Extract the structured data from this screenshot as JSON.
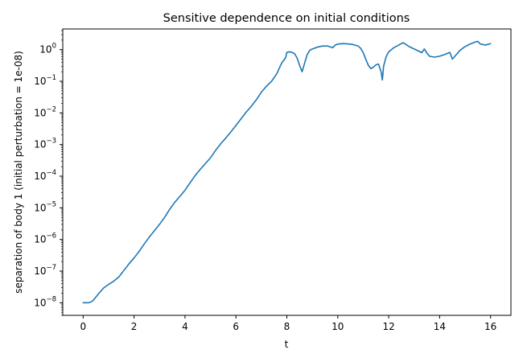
{
  "chart_data": {
    "type": "line",
    "title": "Sensitive dependence on initial conditions",
    "xlabel": "t",
    "ylabel": "separation of body 1 (initial perturbation = 1e-08)",
    "xscale": "linear",
    "yscale": "log",
    "xlim": [
      -0.8,
      16.8
    ],
    "ylim": [
      4e-09,
      4.5
    ],
    "grid": false,
    "color": "#1f77b4",
    "x_ticks": [
      0,
      2,
      4,
      6,
      8,
      10,
      12,
      14,
      16
    ],
    "x_tick_labels": [
      "0",
      "2",
      "4",
      "6",
      "8",
      "10",
      "12",
      "14",
      "16"
    ],
    "y_ticks": [
      {
        "value": 1e-08,
        "base": "10",
        "exp": "−8"
      },
      {
        "value": 1e-07,
        "base": "10",
        "exp": "−7"
      },
      {
        "value": 1e-06,
        "base": "10",
        "exp": "−6"
      },
      {
        "value": 1e-05,
        "base": "10",
        "exp": "−5"
      },
      {
        "value": 0.0001,
        "base": "10",
        "exp": "−4"
      },
      {
        "value": 0.001,
        "base": "10",
        "exp": "−3"
      },
      {
        "value": 0.01,
        "base": "10",
        "exp": "−2"
      },
      {
        "value": 0.1,
        "base": "10",
        "exp": "−1"
      },
      {
        "value": 1,
        "base": "10",
        "exp": "0"
      }
    ],
    "series": [
      {
        "x": [
          0,
          0.1,
          0.2,
          0.3,
          0.4,
          0.6,
          0.8,
          1.0,
          1.2,
          1.4,
          1.6,
          1.8,
          2.0,
          2.2,
          2.4,
          2.6,
          2.8,
          3.0,
          3.2,
          3.4,
          3.6,
          3.8,
          4.0,
          4.2,
          4.4,
          4.6,
          4.8,
          5.0,
          5.2,
          5.4,
          5.6,
          5.8,
          6.0,
          6.2,
          6.4,
          6.6,
          6.8,
          7.0,
          7.2,
          7.4,
          7.6,
          7.8,
          7.95,
          8.0,
          8.1,
          8.2,
          8.3,
          8.4,
          8.5,
          8.6,
          8.7,
          8.8,
          8.9,
          9.0,
          9.2,
          9.4,
          9.6,
          9.8,
          9.9,
          10.0,
          10.2,
          10.4,
          10.6,
          10.8,
          10.9,
          11.0,
          11.1,
          11.2,
          11.3,
          11.4,
          11.5,
          11.6,
          11.7,
          11.75,
          11.8,
          11.9,
          12.0,
          12.2,
          12.4,
          12.55,
          12.6,
          12.8,
          13.0,
          13.2,
          13.3,
          13.4,
          13.5,
          13.6,
          13.8,
          14.0,
          14.2,
          14.4,
          14.5,
          14.6,
          14.8,
          15.0,
          15.2,
          15.4,
          15.5,
          15.6,
          15.8,
          16.0
        ],
        "y": [
          1e-08,
          1e-08,
          1e-08,
          1.05e-08,
          1.2e-08,
          1.9e-08,
          2.9e-08,
          3.8e-08,
          4.8e-08,
          6.5e-08,
          1.05e-07,
          1.7e-07,
          2.6e-07,
          4.2e-07,
          7.2e-07,
          1.2e-06,
          1.9e-06,
          3e-06,
          5e-06,
          9e-06,
          1.5e-05,
          2.3e-05,
          3.6e-05,
          6.2e-05,
          0.000105,
          0.000165,
          0.00025,
          0.00038,
          0.00065,
          0.00105,
          0.0016,
          0.0025,
          0.004,
          0.0065,
          0.0105,
          0.016,
          0.026,
          0.045,
          0.07,
          0.1,
          0.17,
          0.38,
          0.55,
          0.82,
          0.85,
          0.82,
          0.75,
          0.55,
          0.32,
          0.2,
          0.38,
          0.7,
          0.95,
          1.05,
          1.2,
          1.3,
          1.3,
          1.15,
          1.4,
          1.5,
          1.55,
          1.52,
          1.45,
          1.3,
          1.1,
          0.8,
          0.5,
          0.32,
          0.25,
          0.28,
          0.33,
          0.35,
          0.2,
          0.11,
          0.3,
          0.6,
          0.85,
          1.15,
          1.4,
          1.65,
          1.6,
          1.25,
          1.05,
          0.88,
          0.8,
          1.05,
          0.78,
          0.62,
          0.58,
          0.62,
          0.7,
          0.82,
          0.5,
          0.62,
          0.95,
          1.25,
          1.5,
          1.75,
          1.82,
          1.5,
          1.4,
          1.55
        ]
      }
    ]
  }
}
